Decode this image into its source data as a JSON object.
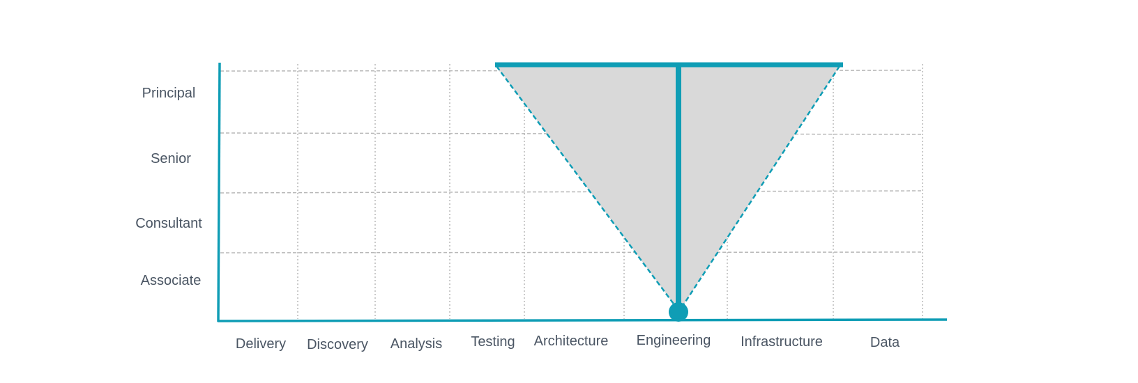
{
  "diagram": {
    "y_levels": [
      "Associate",
      "Consultant",
      "Senior",
      "Principal"
    ],
    "x_disciplines": [
      "Delivery",
      "Discovery",
      "Analysis",
      "Testing",
      "Architecture",
      "Engineering",
      "Infrastructure",
      "Data"
    ],
    "t_shape": {
      "anchor_discipline": "Engineering",
      "anchor_level": "Associate",
      "spread_from": "Testing",
      "spread_to": "Infrastructure",
      "depth_to": "Principal"
    },
    "colors": {
      "axis": "#0f9db5",
      "grid": "#b8b8b8",
      "fill": "#d9d9d9",
      "label": "#4a5563"
    }
  }
}
